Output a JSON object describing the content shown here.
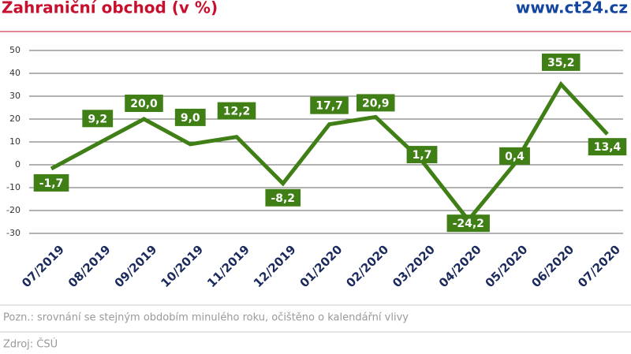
{
  "chart_data": {
    "type": "line",
    "title": "Zahraniční obchod (v %)",
    "site": "www.ct24.cz",
    "note": "Pozn.: srovnání se stejným obdobím minulého roku, očištěno o kalendářní vlivy",
    "source": "Zdroj: ČSÚ",
    "categories": [
      "07/2019",
      "08/2019",
      "09/2019",
      "10/2019",
      "11/2019",
      "12/2019",
      "01/2020",
      "02/2020",
      "03/2020",
      "04/2020",
      "05/2020",
      "06/2020",
      "07/2020"
    ],
    "values": [
      -1.7,
      9.2,
      20.0,
      9.0,
      12.2,
      -8.2,
      17.7,
      20.9,
      1.7,
      -24.2,
      0.4,
      35.2,
      13.4
    ],
    "value_labels": [
      "-1,7",
      "9,2",
      "20,0",
      "9,0",
      "12,2",
      "-8,2",
      "17,7",
      "20,9",
      "1,7",
      "-24,2",
      "0,4",
      "35,2",
      "13,4"
    ],
    "color": "#3f7f16",
    "ylim": [
      -30,
      50
    ],
    "yticks": [
      -30,
      -20,
      -10,
      0,
      10,
      20,
      30,
      40,
      50
    ],
    "grid": true
  }
}
